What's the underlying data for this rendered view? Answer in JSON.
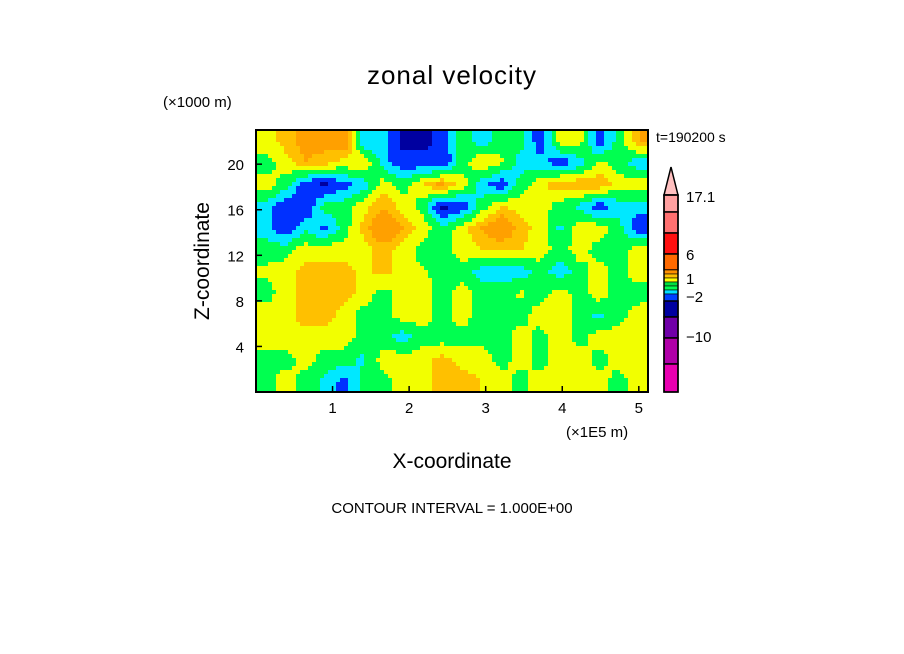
{
  "chart_data": {
    "type": "heatmap",
    "subtype": "filled-contour",
    "title": "zonal velocity",
    "xlabel": "X-coordinate",
    "ylabel": "Z-coordinate",
    "x_unit": "(×1E5 m)",
    "y_unit": "(×1000 m)",
    "time_label": "t=190200 s",
    "footer": "CONTOUR INTERVAL = 1.000E+00",
    "xlim": [
      0,
      5.12
    ],
    "ylim": [
      0,
      23
    ],
    "xticks": [
      "1",
      "2",
      "3",
      "4",
      "5"
    ],
    "xtick_values": [
      1,
      2,
      3,
      4,
      5
    ],
    "yticks": [
      "4",
      "8",
      "12",
      "16",
      "20"
    ],
    "ytick_values": [
      4,
      8,
      12,
      16,
      20
    ],
    "grid_rows_top_to_bottom": [
      [
        1.5,
        2.5,
        3.5,
        3.5,
        4.5,
        -2,
        -1.5,
        -4,
        -4,
        -3,
        0,
        -1.5,
        0,
        0,
        -3,
        1.5,
        1.5,
        -3,
        0,
        3
      ],
      [
        0,
        1.5,
        3,
        2.5,
        1.5,
        2,
        -1.5,
        -3,
        -3,
        -3.5,
        0,
        2,
        1,
        -1.5,
        -1.5,
        -3,
        -1.5,
        1,
        0,
        -1.5
      ],
      [
        1.5,
        0,
        -3,
        -4,
        -2.5,
        -1.5,
        1.5,
        0,
        2,
        3.5,
        1.5,
        -1.5,
        -3,
        0,
        1.5,
        3,
        3,
        3,
        1.5,
        1.5
      ],
      [
        -1.5,
        -3,
        -3.5,
        0,
        0,
        1.5,
        3,
        1.5,
        0,
        -4,
        -3,
        0,
        2,
        1.5,
        1.5,
        0,
        -1,
        -3,
        -1.5,
        -1.5
      ],
      [
        -1.5,
        -3,
        -1,
        -2.5,
        0,
        2.5,
        4.5,
        3,
        1.5,
        -0.5,
        1.5,
        3,
        4.5,
        2.5,
        1.5,
        -1,
        1.5,
        1.5,
        0,
        -3
      ],
      [
        0,
        0,
        1.5,
        1.5,
        1.5,
        1.5,
        2.5,
        1.5,
        0,
        0,
        1.5,
        2,
        2,
        2,
        1.5,
        0,
        1.5,
        0,
        0,
        1.5
      ],
      [
        1,
        1.5,
        2.5,
        2.5,
        2.5,
        1.5,
        2.5,
        1.5,
        1,
        0,
        0,
        -1.5,
        -1.5,
        -1.5,
        0,
        -1.5,
        0,
        1.5,
        0,
        1.5
      ],
      [
        0,
        1.5,
        2.5,
        3,
        2.5,
        1.5,
        0,
        1.5,
        1.5,
        0,
        1.5,
        0,
        0,
        1,
        0,
        1.5,
        0,
        1.5,
        0,
        0
      ],
      [
        1.5,
        1.5,
        2.5,
        2.5,
        1.5,
        0,
        0,
        1.5,
        1.5,
        0,
        1.5,
        0,
        0,
        0,
        1.5,
        1.5,
        0,
        -1,
        0,
        1.5
      ],
      [
        1.5,
        1.5,
        1.5,
        1.5,
        1.5,
        0,
        0,
        -1.5,
        0,
        0,
        0,
        0,
        0,
        1.5,
        0,
        1.5,
        0,
        1.5,
        1.5,
        1.5
      ],
      [
        0,
        0,
        1.5,
        0,
        0,
        -1,
        1.5,
        1.5,
        1.5,
        2.5,
        1.5,
        1.5,
        0,
        1.5,
        0,
        1.5,
        1.5,
        0,
        1.5,
        1.5
      ],
      [
        0,
        1.5,
        0,
        -1,
        -2.5,
        0,
        0,
        1.5,
        1.5,
        2.5,
        2.5,
        2,
        1.5,
        0,
        1.5,
        1.5,
        2,
        1.5,
        0,
        1.5
      ]
    ],
    "levels": [
      -3.5,
      -2,
      -0.7,
      0.7,
      2,
      3,
      4.5
    ],
    "level_colors": [
      "#0000a0",
      "#0030ff",
      "#00e8ff",
      "#00ff50",
      "#f2ff00",
      "#ffc000",
      "#ffa000",
      "#ff6a00"
    ],
    "colorbar": {
      "labels": [
        "17.1",
        "6",
        "1",
        "−2",
        "−10"
      ],
      "colors": [
        "#ffa0a0",
        "#ff7070",
        "#ff1010",
        "#ff6a00",
        "#ff9000",
        "#ffc000",
        "#ffff00",
        "#00e040",
        "#00ff50",
        "#00e0ff",
        "#0040ff",
        "#0000a0",
        "#7000a8",
        "#b000a8",
        "#e800b0"
      ],
      "extend_color": "#ffc0c0"
    }
  }
}
